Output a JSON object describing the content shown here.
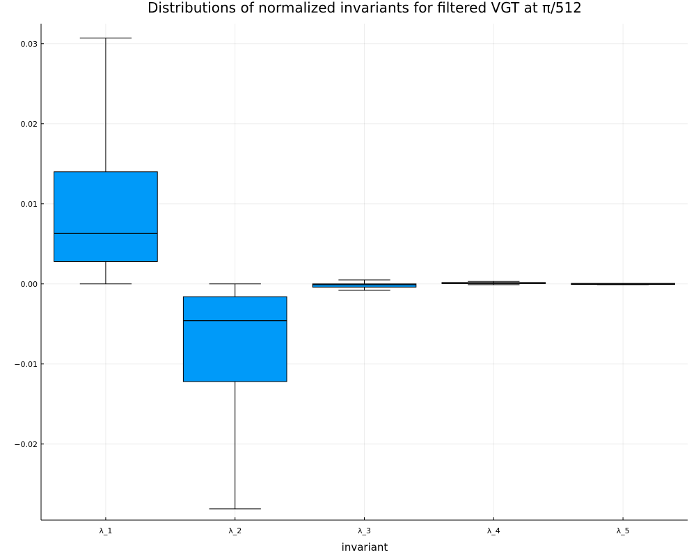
{
  "chart_data": {
    "type": "box",
    "title": "Distributions of normalized invariants for filtered VGT at π/512",
    "xlabel": "invariant",
    "ylabel": "",
    "ylim": [
      -0.0295,
      0.0325
    ],
    "y_ticks": [
      -0.02,
      -0.01,
      0.0,
      0.01,
      0.02,
      0.03
    ],
    "y_tick_labels": [
      "−0.02",
      "−0.01",
      "0.00",
      "0.01",
      "0.02",
      "0.03"
    ],
    "grid": true,
    "legend": "none",
    "color": "#009af9",
    "categories": [
      "λ_1",
      "λ_2",
      "λ_3",
      "λ_4",
      "λ_5"
    ],
    "boxes": [
      {
        "label": "λ_1",
        "whisker_low": 0.0,
        "q1": 0.0028,
        "median": 0.0063,
        "q3": 0.014,
        "whisker_high": 0.0307
      },
      {
        "label": "λ_2",
        "whisker_low": -0.0281,
        "q1": -0.0122,
        "median": -0.0046,
        "q3": -0.0016,
        "whisker_high": 0.0
      },
      {
        "label": "λ_3",
        "whisker_low": -0.0008,
        "q1": -0.0004,
        "median": -0.0001,
        "q3": 0.0,
        "whisker_high": 0.0005
      },
      {
        "label": "λ_4",
        "whisker_low": -0.0001,
        "q1": 0.0,
        "median": 0.0001,
        "q3": 0.0001,
        "whisker_high": 0.0003
      },
      {
        "label": "λ_5",
        "whisker_low": -0.0001,
        "q1": -0.0001,
        "median": 0.0,
        "q3": 0.0,
        "whisker_high": 0.0
      }
    ]
  }
}
